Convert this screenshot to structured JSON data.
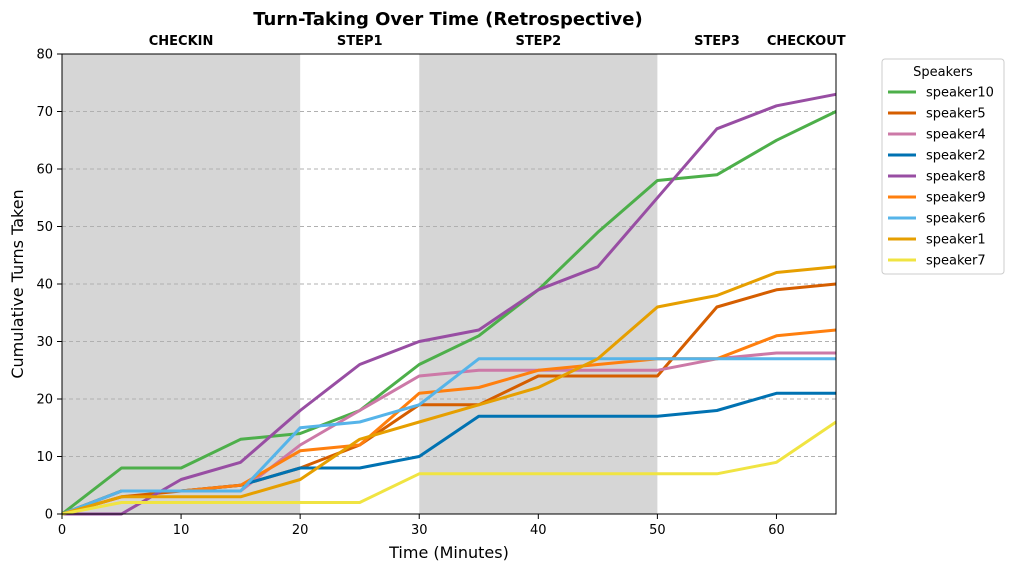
{
  "chart_data": {
    "type": "line",
    "title": "Turn-Taking Over Time (Retrospective)",
    "xlabel": "Time (Minutes)",
    "ylabel": "Cumulative Turns Taken",
    "xlim": [
      0,
      65
    ],
    "ylim": [
      0,
      80
    ],
    "xticks": [
      0,
      10,
      20,
      30,
      40,
      50,
      60
    ],
    "yticks": [
      0,
      10,
      20,
      30,
      40,
      50,
      60,
      70,
      80
    ],
    "grid": "horizontal dashed",
    "legend": {
      "title": "Speakers",
      "placement": "outside-right-top"
    },
    "phases": [
      {
        "name": "CHECKIN",
        "start": 0,
        "end": 20,
        "shaded": true,
        "color": "#d6d6d6"
      },
      {
        "name": "STEP1",
        "start": 20,
        "end": 30,
        "shaded": false
      },
      {
        "name": "STEP2",
        "start": 30,
        "end": 50,
        "shaded": true,
        "color": "#d6d6d6"
      },
      {
        "name": "STEP3",
        "start": 50,
        "end": 60,
        "shaded": false
      },
      {
        "name": "CHECKOUT",
        "start": 60,
        "end": 65,
        "shaded": false
      }
    ],
    "x": [
      0,
      5,
      10,
      15,
      20,
      25,
      30,
      35,
      40,
      45,
      50,
      55,
      60,
      65
    ],
    "series": [
      {
        "name": "speaker10",
        "color": "#4daf4a",
        "values": [
          0,
          8,
          8,
          13,
          14,
          18,
          26,
          31,
          39,
          49,
          58,
          59,
          65,
          70
        ]
      },
      {
        "name": "speaker5",
        "color": "#d55e00",
        "values": [
          0,
          3,
          4,
          5,
          8,
          12,
          19,
          19,
          24,
          24,
          24,
          36,
          39,
          40
        ]
      },
      {
        "name": "speaker4",
        "color": "#cc79a7",
        "values": [
          0,
          4,
          4,
          4,
          12,
          18,
          24,
          25,
          25,
          25,
          25,
          27,
          28,
          28
        ]
      },
      {
        "name": "speaker2",
        "color": "#0072b2",
        "values": [
          0,
          4,
          4,
          5,
          8,
          8,
          10,
          17,
          17,
          17,
          17,
          18,
          21,
          21
        ]
      },
      {
        "name": "speaker8",
        "color": "#984ea3",
        "values": [
          0,
          0,
          6,
          9,
          18,
          26,
          30,
          32,
          39,
          43,
          55,
          67,
          71,
          73
        ]
      },
      {
        "name": "speaker9",
        "color": "#ff7f0e",
        "values": [
          0,
          4,
          4,
          5,
          11,
          12,
          21,
          22,
          25,
          26,
          27,
          27,
          31,
          32
        ]
      },
      {
        "name": "speaker6",
        "color": "#56b4e9",
        "values": [
          0,
          4,
          4,
          4,
          15,
          16,
          19,
          27,
          27,
          27,
          27,
          27,
          27,
          27
        ]
      },
      {
        "name": "speaker1",
        "color": "#e69f00",
        "values": [
          0,
          3,
          3,
          3,
          6,
          13,
          16,
          19,
          22,
          27,
          36,
          38,
          42,
          43
        ]
      },
      {
        "name": "speaker7",
        "color": "#f0e442",
        "values": [
          0,
          2,
          2,
          2,
          2,
          2,
          7,
          7,
          7,
          7,
          7,
          7,
          9,
          16
        ]
      }
    ]
  }
}
